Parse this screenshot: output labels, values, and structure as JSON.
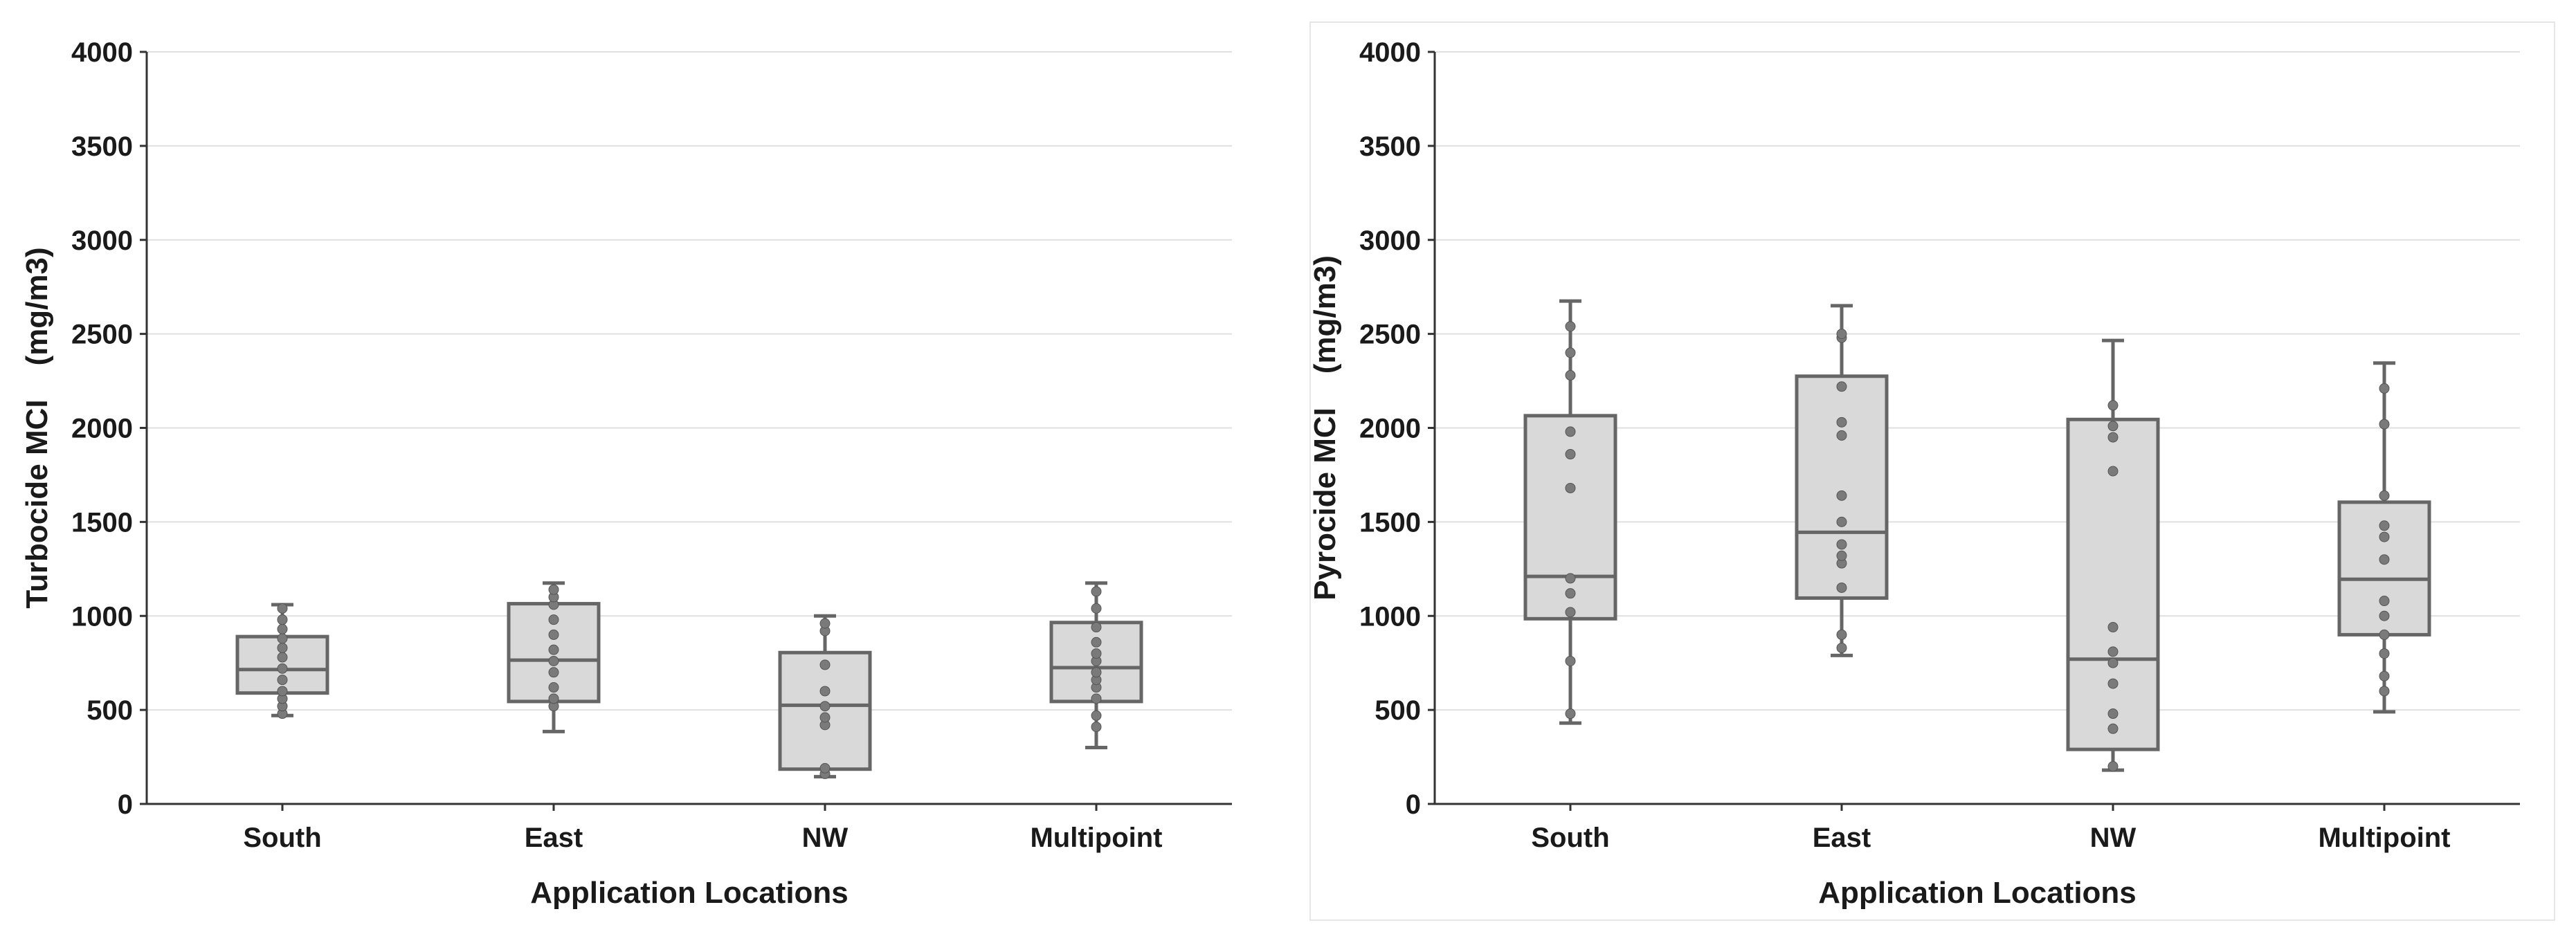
{
  "chart_data": [
    {
      "type": "box",
      "title": "",
      "xlabel": "Application Locations",
      "ylabel": "Turbocide MCI    (mg/m3)",
      "ylim": [
        0,
        4000
      ],
      "yticks": [
        0,
        500,
        1000,
        1500,
        2000,
        2500,
        3000,
        3500,
        4000
      ],
      "grid": true,
      "categories": [
        "South",
        "East",
        "NW",
        "Multipoint"
      ],
      "boxes": [
        {
          "category": "South",
          "min": 470,
          "q1": 590,
          "median": 715,
          "q3": 890,
          "max": 1060,
          "points": [
            480,
            520,
            560,
            600,
            660,
            720,
            780,
            830,
            880,
            930,
            980,
            1040
          ]
        },
        {
          "category": "East",
          "min": 385,
          "q1": 545,
          "median": 765,
          "q3": 1065,
          "max": 1175,
          "points": [
            520,
            560,
            620,
            700,
            760,
            820,
            900,
            980,
            1060,
            1100,
            1140
          ]
        },
        {
          "category": "NW",
          "min": 145,
          "q1": 185,
          "median": 525,
          "q3": 805,
          "max": 1000,
          "points": [
            160,
            190,
            420,
            460,
            520,
            600,
            740,
            920,
            960
          ]
        },
        {
          "category": "Multipoint",
          "min": 300,
          "q1": 545,
          "median": 725,
          "q3": 965,
          "max": 1175,
          "points": [
            410,
            470,
            560,
            620,
            660,
            700,
            760,
            800,
            860,
            940,
            1040,
            1130
          ]
        }
      ]
    },
    {
      "type": "box",
      "title": "",
      "xlabel": "Application Locations",
      "ylabel": "Pyrocide MCI    (mg/m3)",
      "ylim": [
        0,
        4000
      ],
      "yticks": [
        0,
        500,
        1000,
        1500,
        2000,
        2500,
        3000,
        3500,
        4000
      ],
      "grid": true,
      "categories": [
        "South",
        "East",
        "NW",
        "Multipoint"
      ],
      "boxes": [
        {
          "category": "South",
          "min": 430,
          "q1": 985,
          "median": 1210,
          "q3": 2065,
          "max": 2675,
          "points": [
            480,
            760,
            1020,
            1120,
            1200,
            1680,
            1860,
            1980,
            2280,
            2400,
            2540
          ]
        },
        {
          "category": "East",
          "min": 790,
          "q1": 1095,
          "median": 1445,
          "q3": 2275,
          "max": 2650,
          "points": [
            830,
            900,
            1150,
            1280,
            1320,
            1380,
            1500,
            1640,
            1960,
            2030,
            2220,
            2480,
            2500
          ]
        },
        {
          "category": "NW",
          "min": 180,
          "q1": 290,
          "median": 770,
          "q3": 2045,
          "max": 2465,
          "points": [
            200,
            400,
            480,
            640,
            750,
            810,
            940,
            1770,
            1950,
            2010,
            2120
          ]
        },
        {
          "category": "Multipoint",
          "min": 490,
          "q1": 900,
          "median": 1195,
          "q3": 1605,
          "max": 2345,
          "points": [
            600,
            680,
            800,
            900,
            1000,
            1080,
            1300,
            1420,
            1480,
            1640,
            2020,
            2210
          ]
        }
      ]
    }
  ]
}
